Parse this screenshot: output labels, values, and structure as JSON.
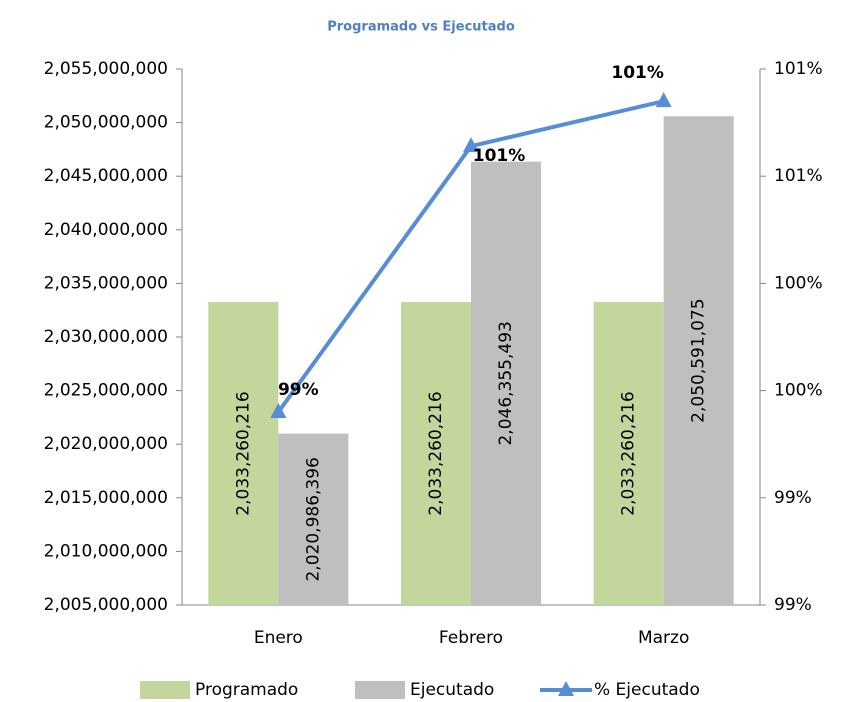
{
  "chart_data": {
    "type": "bar",
    "title": "Programado vs Ejecutado",
    "categories": [
      "Enero",
      "Febrero",
      "Marzo"
    ],
    "series": [
      {
        "name": "Programado",
        "color": "#c3d69b",
        "values": [
          2033260216,
          2033260216,
          2033260216
        ],
        "value_labels": [
          "2,033,260,216",
          "2,033,260,216",
          "2,033,260,216"
        ]
      },
      {
        "name": "Ejecutado",
        "color": "#bfbfbf",
        "values": [
          2020986396,
          2046355493,
          2050591075
        ],
        "value_labels": [
          "2,020,986,396",
          "2,046,355,493",
          "2,050,591,075"
        ]
      },
      {
        "name": "% Ejecutado",
        "type": "line",
        "axis": "y2",
        "color": "#558ed5",
        "values": [
          99.4,
          100.64,
          100.85
        ],
        "value_labels": [
          "99%",
          "101%",
          "101%"
        ]
      }
    ],
    "ylim": [
      2005000000,
      2055000000
    ],
    "yticks": [
      {
        "value": 2005000000,
        "label": "2,005,000,000"
      },
      {
        "value": 2010000000,
        "label": "2,010,000,000"
      },
      {
        "value": 2015000000,
        "label": "2,015,000,000"
      },
      {
        "value": 2020000000,
        "label": "2,020,000,000"
      },
      {
        "value": 2025000000,
        "label": "2,025,000,000"
      },
      {
        "value": 2030000000,
        "label": "2,030,000,000"
      },
      {
        "value": 2035000000,
        "label": "2,035,000,000"
      },
      {
        "value": 2040000000,
        "label": "2,040,000,000"
      },
      {
        "value": 2045000000,
        "label": "2,045,000,000"
      },
      {
        "value": 2050000000,
        "label": "2,050,000,000"
      },
      {
        "value": 2055000000,
        "label": "2,055,000,000"
      }
    ],
    "y2lim": [
      98.5,
      101
    ],
    "y2ticks": [
      {
        "value": 98.5,
        "label": "99%"
      },
      {
        "value": 99,
        "label": "99%"
      },
      {
        "value": 99.5,
        "label": "100%"
      },
      {
        "value": 100,
        "label": "100%"
      },
      {
        "value": 100.5,
        "label": "101%"
      },
      {
        "value": 101,
        "label": "101%"
      }
    ],
    "grid": false,
    "legend": "bottom"
  }
}
